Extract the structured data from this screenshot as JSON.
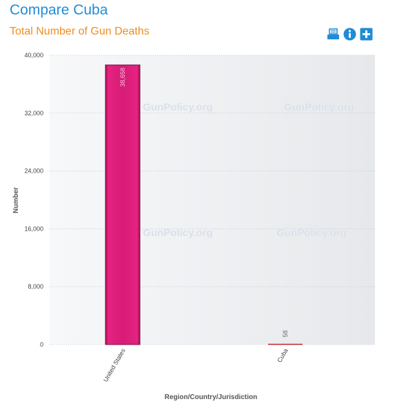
{
  "page": {
    "title": "Compare Cuba"
  },
  "toolbar": {
    "print_icon": "print-icon",
    "info_icon": "info-icon",
    "add_icon": "add-icon",
    "accent": "#1f8dd6"
  },
  "watermark": "GunPolicy.org",
  "chart_data": {
    "type": "bar",
    "title": "Total Number of Gun Deaths",
    "categories": [
      "United States",
      "Cuba"
    ],
    "values": [
      38658,
      58
    ],
    "value_labels": [
      "38,658",
      "58"
    ],
    "xlabel": "Region/Country/Jurisdiction",
    "ylabel": "Number",
    "ylim": [
      0,
      40000
    ],
    "yticks": [
      0,
      8000,
      16000,
      24000,
      32000,
      40000
    ],
    "ytick_labels": [
      "0",
      "8,000",
      "16,000",
      "24,000",
      "32,000",
      "40,000"
    ],
    "grid": true,
    "bar_colors": [
      "#d81b78",
      "#c0232d"
    ]
  }
}
